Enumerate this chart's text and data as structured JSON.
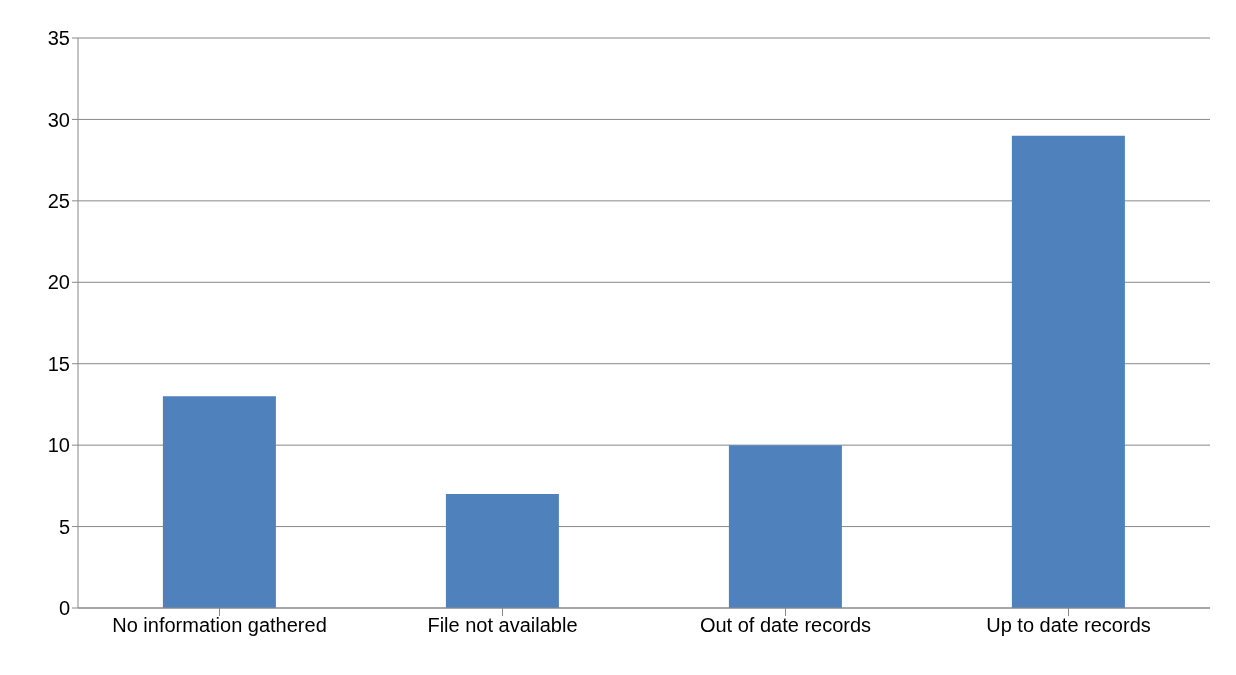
{
  "chart_data": {
    "type": "bar",
    "categories": [
      "No information gathered",
      "File not available",
      "Out of date records",
      "Up to date records"
    ],
    "values": [
      13,
      7,
      10,
      29
    ],
    "color": "#4f81bd",
    "ylim": [
      0,
      35
    ],
    "yticks": [
      0,
      5,
      10,
      15,
      20,
      25,
      30,
      35
    ],
    "grid": "y",
    "legend": false
  }
}
